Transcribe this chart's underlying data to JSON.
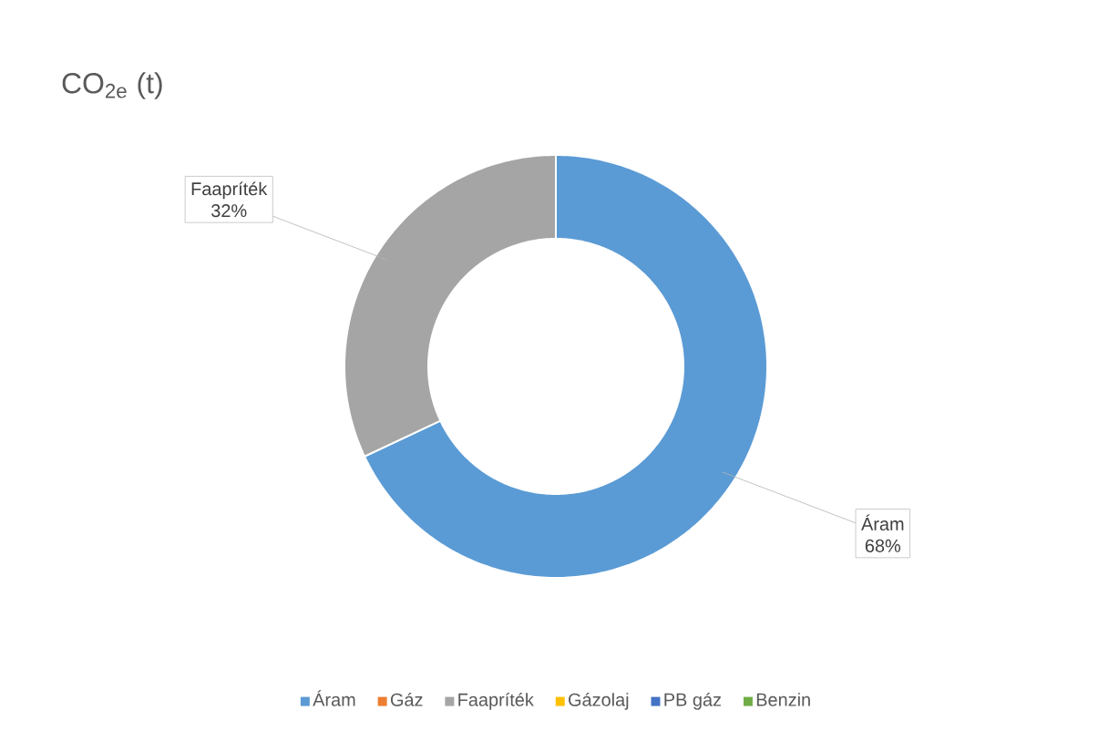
{
  "chart_data": {
    "type": "donut",
    "title": "CO$_{2e}$ (t)",
    "categories": [
      "Áram",
      "Gáz",
      "Faapríték",
      "Gázolaj",
      "PB gáz",
      "Benzin"
    ],
    "values": [
      68,
      0,
      32,
      0,
      0,
      0
    ],
    "colors": [
      "#5b9bd5",
      "#ed7d31",
      "#a5a5a5",
      "#ffc000",
      "#4472c4",
      "#70ad47"
    ],
    "value_labels": [
      "68%",
      null,
      "32%",
      null,
      null,
      null
    ],
    "legend": "bottom"
  }
}
